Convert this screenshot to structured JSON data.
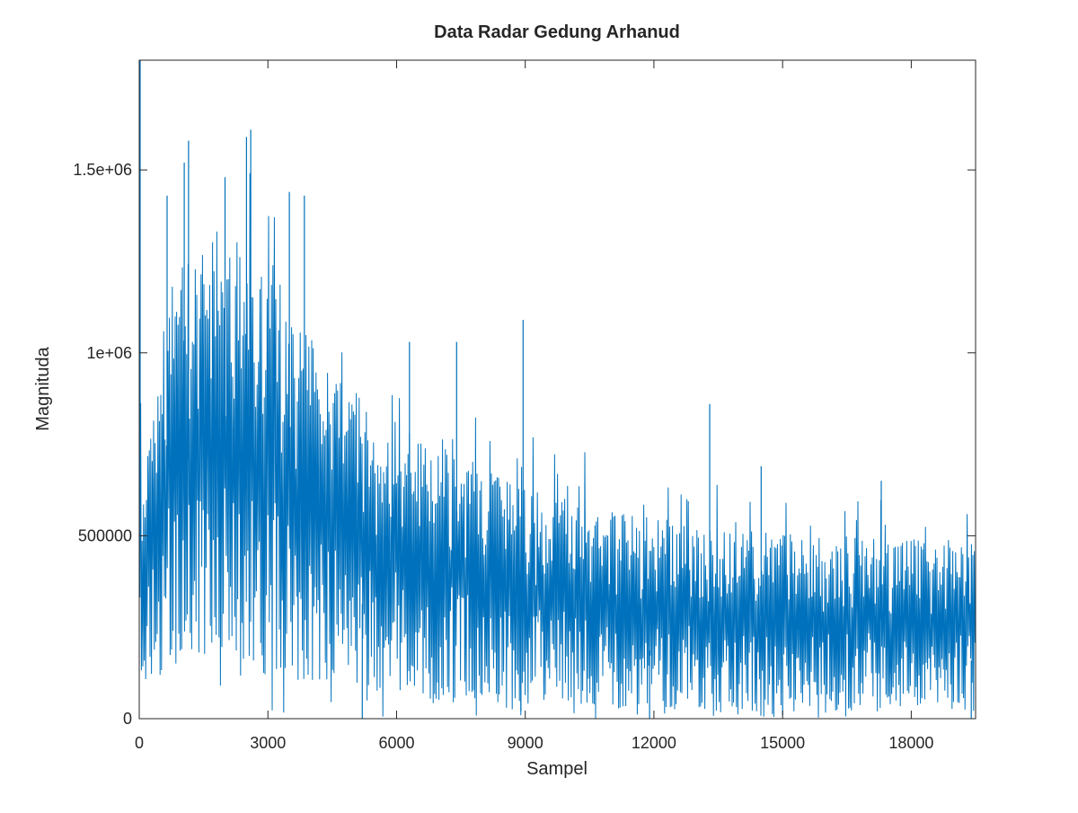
{
  "chart_data": {
    "type": "line",
    "title": "Data Radar Gedung Arhanud",
    "xlabel": "Sampel",
    "ylabel": "Magnituda",
    "xlim": [
      0,
      19500
    ],
    "ylim": [
      0,
      1800000
    ],
    "xticks": [
      0,
      3000,
      6000,
      9000,
      12000,
      15000,
      18000
    ],
    "xtick_labels": [
      "0",
      "3000",
      "6000",
      "9000",
      "12000",
      "15000",
      "18000"
    ],
    "yticks": [
      0,
      500000,
      1000000,
      1500000
    ],
    "ytick_labels": [
      "0",
      "500000",
      "1e+06",
      "1.5e+06"
    ],
    "grid": false,
    "legend": "none",
    "series": [
      {
        "color": "#0072bd",
        "sample_step": 200,
        "envelope": {
          "x": [
            0,
            50,
            500,
            1000,
            1500,
            2000,
            2500,
            3000,
            3500,
            4000,
            4500,
            5000,
            5500,
            6000,
            6500,
            7000,
            7500,
            8000,
            8500,
            9000,
            9500,
            10000,
            10500,
            11000,
            11500,
            12000,
            12500,
            13000,
            13500,
            14000,
            14500,
            15000,
            15500,
            16000,
            16500,
            17000,
            17500,
            18000,
            18500,
            19000,
            19500
          ],
          "upper": [
            1800000,
            560000,
            1050000,
            1300000,
            1250000,
            1300000,
            1250000,
            1200000,
            1150000,
            1050000,
            950000,
            900000,
            820000,
            820000,
            780000,
            760000,
            720000,
            680000,
            660000,
            640000,
            610000,
            600000,
            590000,
            570000,
            560000,
            550000,
            540000,
            530000,
            520000,
            520000,
            510000,
            510000,
            500000,
            500000,
            500000,
            500000,
            490000,
            500000,
            490000,
            490000,
            480000
          ],
          "lower": [
            50000,
            100000,
            120000,
            130000,
            140000,
            140000,
            130000,
            120000,
            110000,
            100000,
            90000,
            80000,
            70000,
            60000,
            60000,
            50000,
            50000,
            50000,
            40000,
            40000,
            40000,
            40000,
            30000,
            30000,
            30000,
            30000,
            30000,
            30000,
            20000,
            20000,
            20000,
            20000,
            20000,
            20000,
            20000,
            20000,
            20000,
            20000,
            20000,
            20000,
            20000
          ]
        },
        "peaks": [
          {
            "x": 20,
            "y": 1800000
          },
          {
            "x": 650,
            "y": 1430000
          },
          {
            "x": 1050,
            "y": 1520000
          },
          {
            "x": 1150,
            "y": 1580000
          },
          {
            "x": 2000,
            "y": 1480000
          },
          {
            "x": 2500,
            "y": 1590000
          },
          {
            "x": 2600,
            "y": 1610000
          },
          {
            "x": 3500,
            "y": 1440000
          },
          {
            "x": 3850,
            "y": 1430000
          },
          {
            "x": 6300,
            "y": 1030000
          },
          {
            "x": 7400,
            "y": 1030000
          },
          {
            "x": 8950,
            "y": 1090000
          },
          {
            "x": 13300,
            "y": 860000
          },
          {
            "x": 14500,
            "y": 690000
          },
          {
            "x": 17300,
            "y": 650000
          }
        ],
        "dips": [
          {
            "x": 5200,
            "y": 0
          },
          {
            "x": 8900,
            "y": 20000
          },
          {
            "x": 11900,
            "y": 0
          },
          {
            "x": 15000,
            "y": 10000
          },
          {
            "x": 19400,
            "y": 0
          }
        ]
      }
    ]
  }
}
